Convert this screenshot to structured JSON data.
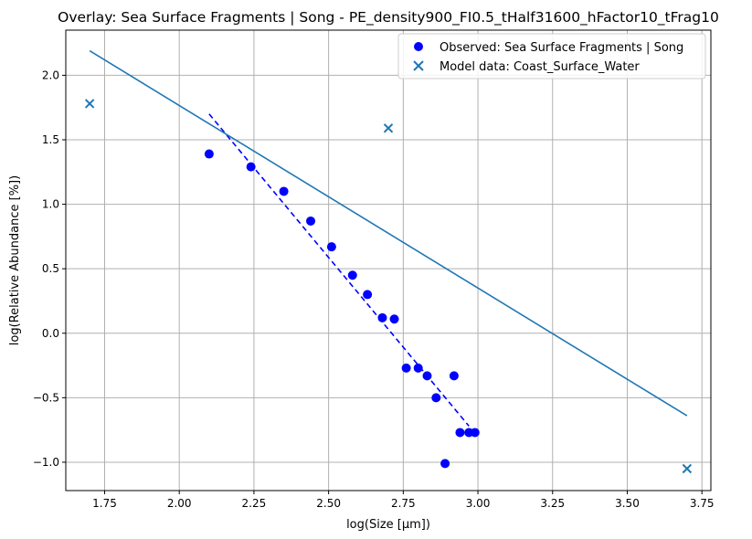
{
  "chart_data": {
    "type": "scatter",
    "title": "Overlay: Sea Surface Fragments | Song - PE_density900_FI0.5_tHalf31600_hFactor10_tFrag10",
    "xlabel": "log(Size [μm])",
    "ylabel": "log(Relative Abundance [%])",
    "xlim": [
      1.62,
      3.78
    ],
    "ylim": [
      -1.22,
      2.35
    ],
    "x_ticks": [
      1.75,
      2.0,
      2.25,
      2.5,
      2.75,
      3.0,
      3.25,
      3.5,
      3.75
    ],
    "x_tick_labels": [
      "1.75",
      "2.00",
      "2.25",
      "2.50",
      "2.75",
      "3.00",
      "3.25",
      "3.50",
      "3.75"
    ],
    "y_ticks": [
      -1.0,
      -0.5,
      0.0,
      0.5,
      1.0,
      1.5,
      2.0
    ],
    "y_tick_labels": [
      "−1.0",
      "−0.5",
      "0.0",
      "0.5",
      "1.0",
      "1.5",
      "2.0"
    ],
    "grid": true,
    "legend_position": "top-right",
    "series": [
      {
        "name": "Observed: Sea Surface Fragments | Song",
        "kind": "scatter",
        "marker": "circle",
        "color": "#0000ff",
        "x": [
          2.1,
          2.24,
          2.35,
          2.44,
          2.51,
          2.58,
          2.63,
          2.68,
          2.72,
          2.76,
          2.8,
          2.83,
          2.86,
          2.89,
          2.92,
          2.94,
          2.97,
          2.99
        ],
        "y": [
          1.39,
          1.29,
          1.1,
          0.87,
          0.67,
          0.45,
          0.3,
          0.12,
          0.11,
          -0.27,
          -0.27,
          -0.33,
          -0.5,
          -1.01,
          -0.33,
          -0.77,
          -0.77,
          -0.77
        ]
      },
      {
        "name": "",
        "kind": "line",
        "style": "dashed",
        "color": "#0000ff",
        "x": [
          2.1,
          2.97
        ],
        "y": [
          1.7,
          -0.72
        ]
      },
      {
        "name": "Model data: Coast_Surface_Water",
        "kind": "scatter",
        "marker": "x",
        "color": "#1f77b4",
        "x": [
          1.7,
          2.7,
          3.7
        ],
        "y": [
          1.78,
          1.59,
          -1.05
        ]
      },
      {
        "name": "",
        "kind": "line",
        "style": "solid",
        "color": "#1f77b4",
        "x": [
          1.7,
          3.7
        ],
        "y": [
          2.19,
          -0.64
        ]
      }
    ]
  }
}
